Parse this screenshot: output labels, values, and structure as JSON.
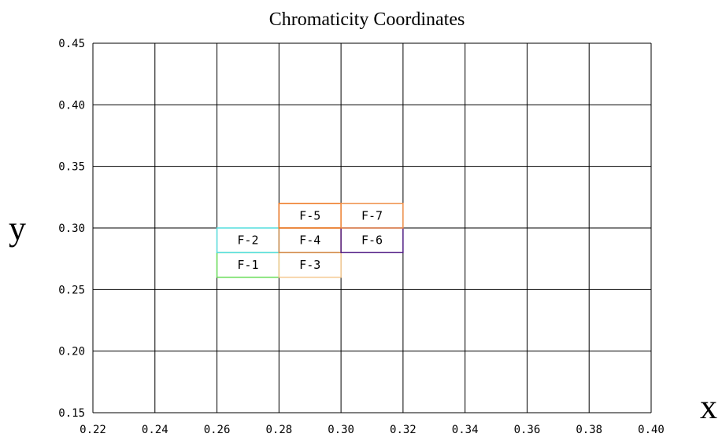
{
  "chart_data": {
    "type": "rectangles",
    "title": "Chromaticity Coordinates",
    "xlabel": "x",
    "ylabel": "y",
    "xlim": [
      0.22,
      0.4
    ],
    "ylim": [
      0.15,
      0.45
    ],
    "xticks": [
      "0.22",
      "0.24",
      "0.26",
      "0.28",
      "0.30",
      "0.32",
      "0.34",
      "0.36",
      "0.38",
      "0.40"
    ],
    "yticks": [
      "0.15",
      "0.20",
      "0.25",
      "0.30",
      "0.35",
      "0.40",
      "0.45"
    ],
    "grid": true,
    "regions": [
      {
        "label": "F-1",
        "x0": 0.26,
        "x1": 0.28,
        "y0": 0.26,
        "y1": 0.28,
        "color": "#66dd55"
      },
      {
        "label": "F-2",
        "x0": 0.26,
        "x1": 0.28,
        "y0": 0.28,
        "y1": 0.3,
        "color": "#55dddd"
      },
      {
        "label": "F-3",
        "x0": 0.28,
        "x1": 0.3,
        "y0": 0.26,
        "y1": 0.28,
        "color": "#f5c990"
      },
      {
        "label": "F-4",
        "x0": 0.28,
        "x1": 0.3,
        "y0": 0.28,
        "y1": 0.3,
        "color": "#d28a4a"
      },
      {
        "label": "F-5",
        "x0": 0.28,
        "x1": 0.3,
        "y0": 0.3,
        "y1": 0.32,
        "color": "#ee7722"
      },
      {
        "label": "F-6",
        "x0": 0.3,
        "x1": 0.32,
        "y0": 0.28,
        "y1": 0.3,
        "color": "#552288"
      },
      {
        "label": "F-7",
        "x0": 0.3,
        "x1": 0.32,
        "y0": 0.3,
        "y1": 0.32,
        "color": "#f0904a"
      }
    ]
  }
}
